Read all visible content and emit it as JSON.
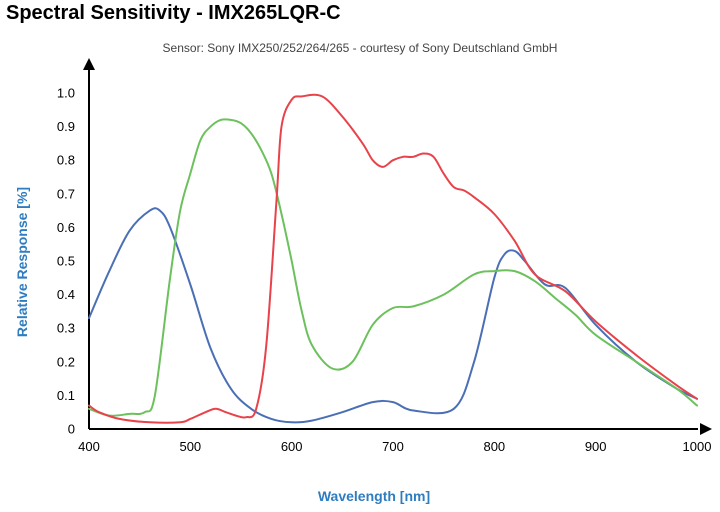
{
  "chart_data": {
    "type": "line",
    "title": "Spectral Sensitivity - IMX265LQR-C",
    "subtitle": "Sensor: Sony IMX250/252/264/265 - courtesy of Sony Deutschland GmbH",
    "xlabel": "Wavelength [nm]",
    "ylabel": "Relative Response [%]",
    "xlim": [
      400,
      1000
    ],
    "ylim": [
      0,
      1.0
    ],
    "xticks": [
      400,
      500,
      600,
      700,
      800,
      900,
      1000
    ],
    "yticks": [
      0,
      0.1,
      0.2,
      0.3,
      0.4,
      0.5,
      0.6,
      0.7,
      0.8,
      0.9,
      1.0
    ],
    "ytick_labels": [
      "0",
      "0.1",
      "0.2",
      "0.3",
      "0.4",
      "0.5",
      "0.6",
      "0.7",
      "0.8",
      "0.9",
      "1.0"
    ],
    "grid": false,
    "series": [
      {
        "color": "#4a6fb5",
        "x": [
          400,
          420,
          440,
          460,
          470,
          480,
          500,
          520,
          540,
          560,
          580,
          600,
          620,
          650,
          680,
          700,
          720,
          760,
          780,
          800,
          810,
          820,
          830,
          850,
          870,
          900,
          940,
          980,
          1000
        ],
        "y": [
          0.33,
          0.47,
          0.59,
          0.65,
          0.65,
          0.6,
          0.43,
          0.24,
          0.12,
          0.06,
          0.03,
          0.02,
          0.025,
          0.05,
          0.08,
          0.08,
          0.055,
          0.06,
          0.2,
          0.45,
          0.52,
          0.53,
          0.5,
          0.43,
          0.42,
          0.31,
          0.2,
          0.12,
          0.09
        ]
      },
      {
        "color": "#6cc15d",
        "x": [
          400,
          420,
          440,
          455,
          465,
          480,
          490,
          500,
          510,
          520,
          530,
          540,
          550,
          560,
          570,
          580,
          590,
          600,
          610,
          620,
          640,
          660,
          680,
          700,
          720,
          750,
          780,
          800,
          820,
          840,
          860,
          880,
          900,
          940,
          980,
          1000
        ],
        "y": [
          0.06,
          0.04,
          0.045,
          0.05,
          0.1,
          0.45,
          0.65,
          0.76,
          0.86,
          0.9,
          0.92,
          0.92,
          0.91,
          0.88,
          0.83,
          0.76,
          0.64,
          0.5,
          0.35,
          0.25,
          0.18,
          0.2,
          0.31,
          0.36,
          0.365,
          0.4,
          0.46,
          0.47,
          0.47,
          0.44,
          0.39,
          0.34,
          0.28,
          0.2,
          0.12,
          0.07
        ]
      },
      {
        "color": "#e8424a",
        "x": [
          400,
          410,
          430,
          460,
          490,
          500,
          515,
          525,
          535,
          545,
          555,
          565,
          575,
          585,
          590,
          600,
          610,
          630,
          650,
          670,
          680,
          690,
          700,
          710,
          720,
          730,
          740,
          750,
          760,
          770,
          780,
          800,
          820,
          840,
          870,
          900,
          940,
          980,
          1000
        ],
        "y": [
          0.07,
          0.05,
          0.03,
          0.02,
          0.02,
          0.03,
          0.05,
          0.06,
          0.05,
          0.04,
          0.035,
          0.06,
          0.25,
          0.68,
          0.9,
          0.98,
          0.99,
          0.99,
          0.93,
          0.85,
          0.8,
          0.78,
          0.8,
          0.81,
          0.81,
          0.82,
          0.81,
          0.76,
          0.72,
          0.71,
          0.69,
          0.64,
          0.56,
          0.46,
          0.41,
          0.32,
          0.22,
          0.13,
          0.09
        ]
      }
    ]
  }
}
